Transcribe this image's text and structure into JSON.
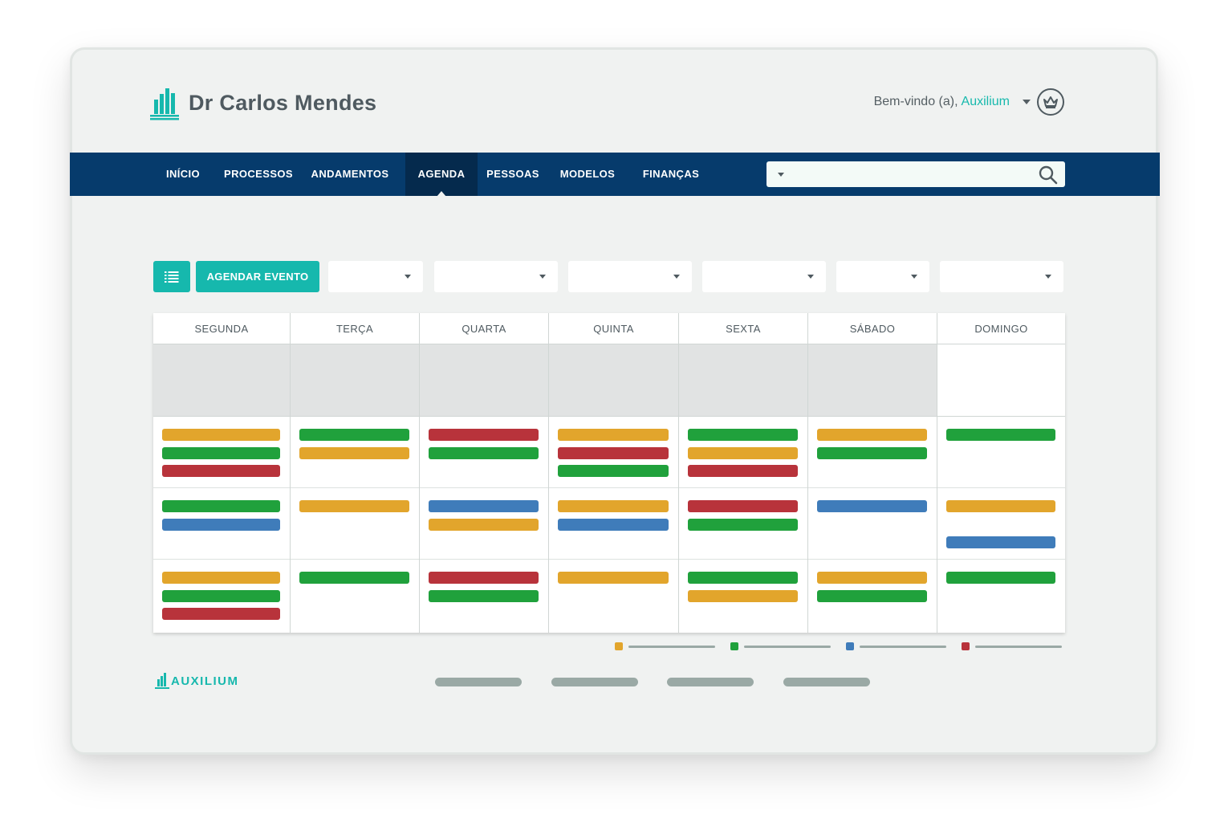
{
  "header": {
    "title": "Dr Carlos Mendes",
    "welcome": "Bem-vindo (a),",
    "user_name": "Auxilium"
  },
  "nav": {
    "items": [
      "INÍCIO",
      "PROCESSOS",
      "ANDAMENTOS",
      "AGENDA",
      "PESSOAS",
      "MODELOS",
      "FINANÇAS"
    ],
    "active": "AGENDA",
    "search": {
      "value": "",
      "placeholder": ""
    }
  },
  "toolbar": {
    "schedule_label": "AGENDAR EVENTO",
    "filters": [
      "",
      "",
      "",
      "",
      "",
      ""
    ]
  },
  "calendar": {
    "days": [
      "SEGUNDA",
      "TERÇA",
      "QUARTA",
      "QUINTA",
      "SEXTA",
      "SÁBADO",
      "DOMINGO"
    ],
    "events": [
      [
        [
          "orange",
          "green",
          "red"
        ],
        [
          "green",
          "blue"
        ],
        [
          "orange",
          "green",
          "red"
        ]
      ],
      [
        [
          "green",
          "orange"
        ],
        [
          "orange"
        ],
        [
          "green"
        ]
      ],
      [
        [
          "red",
          "green"
        ],
        [
          "blue",
          "orange"
        ],
        [
          "red",
          "green"
        ]
      ],
      [
        [
          "orange",
          "red",
          "green"
        ],
        [
          "orange",
          "blue"
        ],
        [
          "orange"
        ]
      ],
      [
        [
          "green",
          "orange",
          "red"
        ],
        [
          "red",
          "green"
        ],
        [
          "green",
          "orange"
        ]
      ],
      [
        [
          "orange",
          "green"
        ],
        [
          "blue"
        ],
        [
          "orange",
          "green"
        ]
      ],
      [
        [
          "green"
        ],
        [
          "orange",
          "blue"
        ],
        [
          "green"
        ]
      ]
    ]
  },
  "colors": {
    "orange": "#e2a52c",
    "green": "#20a13c",
    "blue": "#3f7cba",
    "red": "#b8333b",
    "accent": "#16b8ad",
    "navbar": "#063b6c"
  },
  "legend": [
    "orange",
    "green",
    "blue",
    "red"
  ],
  "footer": {
    "brand": "AUXILIUM",
    "links": [
      "",
      "",
      "",
      ""
    ]
  },
  "icons": {
    "brand": "building-chart-icon",
    "avatar": "crown-icon",
    "search": "search-icon",
    "list": "list-icon"
  }
}
